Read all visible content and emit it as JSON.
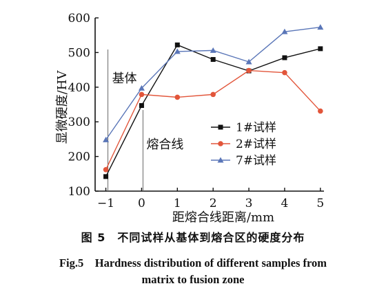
{
  "chart_data": {
    "type": "line",
    "title": "",
    "xlabel": "距熔合线距离/mm",
    "ylabel": "显微硬度/HV",
    "x": [
      -1,
      0,
      1,
      2,
      3,
      4,
      5
    ],
    "x_ticks": [
      "−1",
      "0",
      "1",
      "2",
      "3",
      "4",
      "5"
    ],
    "y_ticks": [
      "100",
      "200",
      "300",
      "400",
      "500",
      "600"
    ],
    "xlim": [
      -1.3,
      5.1
    ],
    "ylim": [
      100,
      600
    ],
    "grid": false,
    "legend_position": "right-center",
    "series": [
      {
        "name": "1#试样",
        "color": "#111111",
        "marker": "square",
        "values": [
          142,
          347,
          522,
          480,
          447,
          485,
          511
        ]
      },
      {
        "name": "2#试样",
        "color": "#e2553a",
        "marker": "circle",
        "values": [
          162,
          379,
          371,
          379,
          448,
          442,
          331
        ]
      },
      {
        "name": "7#试样",
        "color": "#5a76b8",
        "marker": "triangle",
        "values": [
          248,
          397,
          503,
          506,
          473,
          560,
          573
        ]
      }
    ],
    "annotations": [
      {
        "text": "基体",
        "x": -1
      },
      {
        "text": "熔合线",
        "x": 0
      }
    ]
  },
  "caption": {
    "zh": "图 5　不同试样从基体到熔合区的硬度分布",
    "en_line1": "Fig.5　Hardness distribution of different samples from",
    "en_line2": "matrix to fusion zone"
  }
}
